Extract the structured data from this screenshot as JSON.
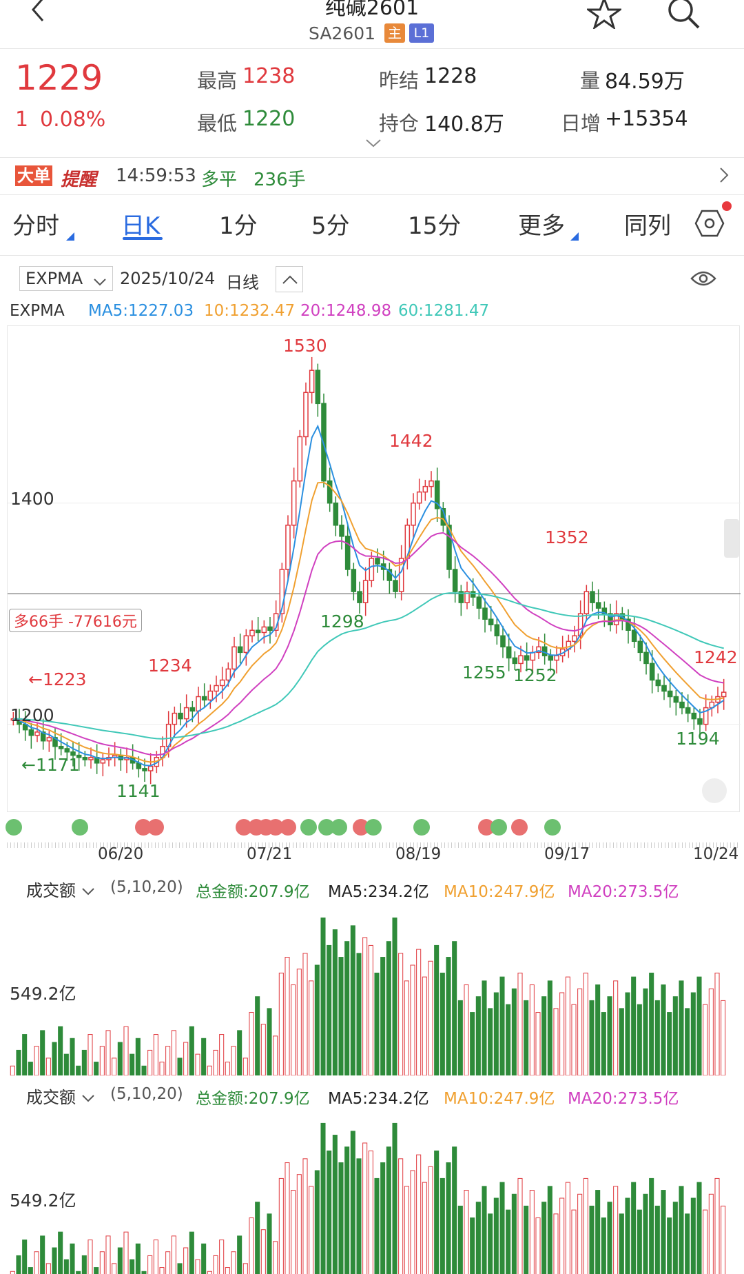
{
  "header": {
    "title": "纯碱2601",
    "symbol": "SA2601",
    "tag_main": "主",
    "tag_level": "L1"
  },
  "quote": {
    "last": "1229",
    "change": "1",
    "change_pct": "0.08%",
    "high_label": "最高",
    "high": "1238",
    "low_label": "最低",
    "low": "1220",
    "prev_settle_label": "昨结",
    "prev_settle": "1228",
    "oi_label": "持仓",
    "oi": "140.8万",
    "vol_label": "量",
    "vol": "84.59万",
    "daily_inc_label": "日增",
    "daily_inc": "+15354"
  },
  "alert": {
    "badge1": "大单",
    "badge2": "提醒",
    "time": "14:59:53",
    "type": "多平",
    "qty": "236手"
  },
  "tabs": [
    "分时",
    "日K",
    "1分",
    "5分",
    "15分",
    "更多",
    "同列"
  ],
  "active_tab": "日K",
  "chart_header": {
    "indicator": "EXPMA",
    "date": "2025/10/24",
    "period": "日线"
  },
  "legend": {
    "name": "EXPMA",
    "ma5": "MA5:1227.03",
    "ma10": "10:1232.47",
    "ma20": "20:1248.98",
    "ma60": "60:1281.47"
  },
  "colors": {
    "up": "#e0393e",
    "down": "#2e8b3a",
    "ma5": "#2a8fe0",
    "ma10": "#f0a030",
    "ma20": "#d040c0",
    "ma60": "#40c8b8",
    "accent": "#2a6be0"
  },
  "chart_data": {
    "type": "candlestick",
    "ylim": [
      1120,
      1560
    ],
    "y_tick": "1400",
    "y_tick_low": "1200",
    "position_label": "多66手 -77616元",
    "annotations": [
      {
        "text": "1530",
        "color": "red"
      },
      {
        "text": "1442",
        "color": "red"
      },
      {
        "text": "1352",
        "color": "red"
      },
      {
        "text": "1242",
        "color": "red"
      },
      {
        "text": "1234",
        "color": "red"
      },
      {
        "text": "←1223",
        "color": "red"
      },
      {
        "text": "1298",
        "color": "green"
      },
      {
        "text": "1255",
        "color": "green"
      },
      {
        "text": "1252",
        "color": "green"
      },
      {
        "text": "1194",
        "color": "green"
      },
      {
        "text": "←1171",
        "color": "green"
      },
      {
        "text": "1141",
        "color": "green"
      }
    ],
    "x_labels": [
      "06/20",
      "07/21",
      "08/19",
      "09/17",
      "10/24"
    ],
    "closes": [
      1205,
      1200,
      1195,
      1190,
      1193,
      1185,
      1188,
      1180,
      1178,
      1175,
      1172,
      1170,
      1168,
      1170,
      1165,
      1168,
      1170,
      1172,
      1168,
      1170,
      1165,
      1160,
      1158,
      1162,
      1170,
      1180,
      1200,
      1210,
      1205,
      1215,
      1212,
      1225,
      1222,
      1230,
      1235,
      1240,
      1250,
      1270,
      1265,
      1280,
      1285,
      1283,
      1288,
      1285,
      1300,
      1340,
      1380,
      1420,
      1460,
      1500,
      1520,
      1490,
      1420,
      1400,
      1380,
      1370,
      1340,
      1320,
      1310,
      1330,
      1350,
      1345,
      1340,
      1330,
      1320,
      1350,
      1380,
      1400,
      1410,
      1415,
      1420,
      1395,
      1380,
      1340,
      1320,
      1310,
      1320,
      1315,
      1305,
      1295,
      1290,
      1280,
      1270,
      1260,
      1255,
      1262,
      1258,
      1265,
      1270,
      1262,
      1258,
      1262,
      1268,
      1275,
      1280,
      1300,
      1320,
      1310,
      1305,
      1300,
      1290,
      1300,
      1295,
      1285,
      1275,
      1265,
      1255,
      1240,
      1235,
      1230,
      1225,
      1220,
      1215,
      1210,
      1205,
      1200,
      1215,
      1220,
      1225,
      1229
    ],
    "volume_chart": {
      "label": "成交额",
      "params": "(5,10,20)",
      "total": "总金额:207.9亿",
      "ma5": "MA5:234.2亿",
      "ma10": "MA10:247.9亿",
      "ma20": "MA20:273.5亿",
      "y_tick": "549.2亿"
    }
  }
}
